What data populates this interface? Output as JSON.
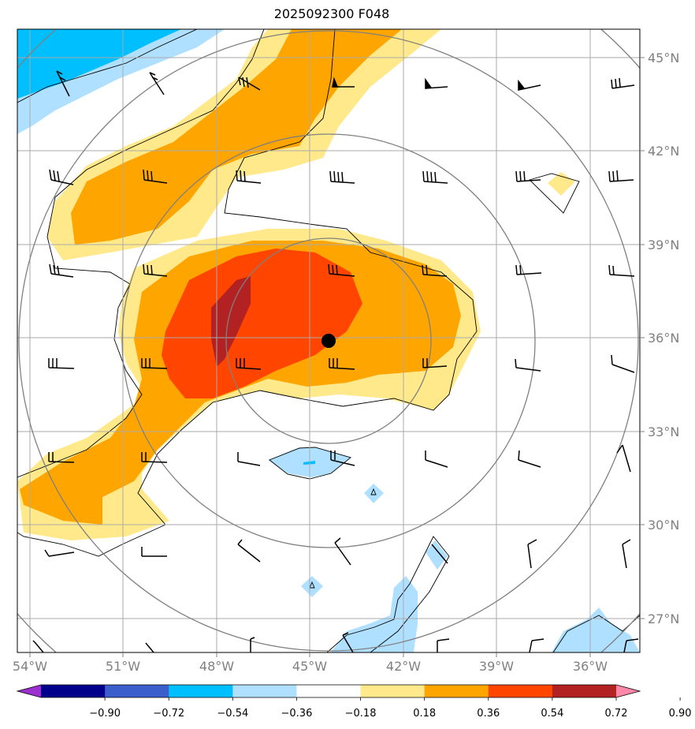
{
  "title": "2025092300 F048",
  "map": {
    "lon_labels": [
      "54°W",
      "51°W",
      "48°W",
      "45°W",
      "42°W",
      "39°W",
      "36°W"
    ],
    "lat_labels": [
      "45°N",
      "42°N",
      "39°N",
      "36°N",
      "33°N",
      "30°N",
      "27°N"
    ],
    "lon_range": [
      -54.4,
      -34.4
    ],
    "lat_range": [
      26.0,
      46.0
    ],
    "center_marker": {
      "lon": -44.4,
      "lat": 35.9
    }
  },
  "colorbar": {
    "ticks": [
      "−0.90",
      "−0.72",
      "−0.54",
      "−0.36",
      "−0.18",
      "0.18",
      "0.36",
      "0.54",
      "0.72",
      "0.90"
    ],
    "colors": [
      "#9b30d0",
      "#00008b",
      "#3a5fcd",
      "#00bfff",
      "#b0e0ff",
      "#ffffff",
      "#ffe98a",
      "#ffa500",
      "#ff4500",
      "#b22222",
      "#ff88aa"
    ]
  },
  "colors": {
    "light_yellow": "#ffe98a",
    "orange": "#ffa500",
    "red_orange": "#ff4500",
    "dark_red": "#b22222",
    "light_blue": "#b0e0ff",
    "deep_sky_blue": "#00bfff"
  }
}
